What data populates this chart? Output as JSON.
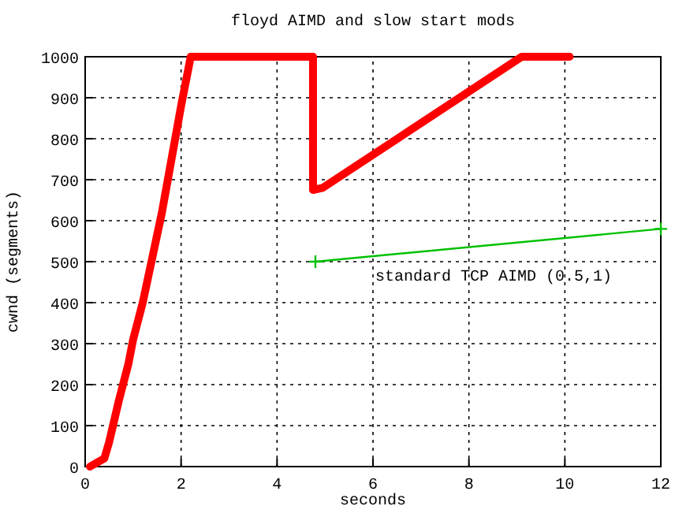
{
  "chart_data": {
    "type": "line",
    "title": "floyd AIMD and slow start mods",
    "xlabel": "seconds",
    "ylabel": "cwnd (segments)",
    "xlim": [
      0,
      12
    ],
    "xticks": [
      0,
      2,
      4,
      6,
      8,
      10,
      12
    ],
    "ylim": [
      0,
      1000
    ],
    "yticks": [
      0,
      100,
      200,
      300,
      400,
      500,
      600,
      700,
      800,
      900,
      1000
    ],
    "grid": true,
    "series": [
      {
        "color": "#ff0000",
        "marker": "none",
        "x": [
          0.1,
          0.4,
          0.5,
          0.6,
          0.7,
          0.9,
          1.0,
          1.2,
          1.4,
          1.6,
          1.8,
          2.0,
          2.2,
          4.75,
          4.75,
          4.95,
          9.1,
          10.1
        ],
        "values": [
          0,
          20,
          60,
          110,
          160,
          250,
          310,
          400,
          510,
          620,
          750,
          880,
          1000,
          1000,
          675,
          680,
          1000,
          1000
        ]
      },
      {
        "color": "#00c000",
        "marker": "cross",
        "x": [
          4.8,
          12
        ],
        "values": [
          500,
          580
        ]
      }
    ],
    "annotations": [
      "standard TCP AIMD (0.5,1)"
    ]
  }
}
